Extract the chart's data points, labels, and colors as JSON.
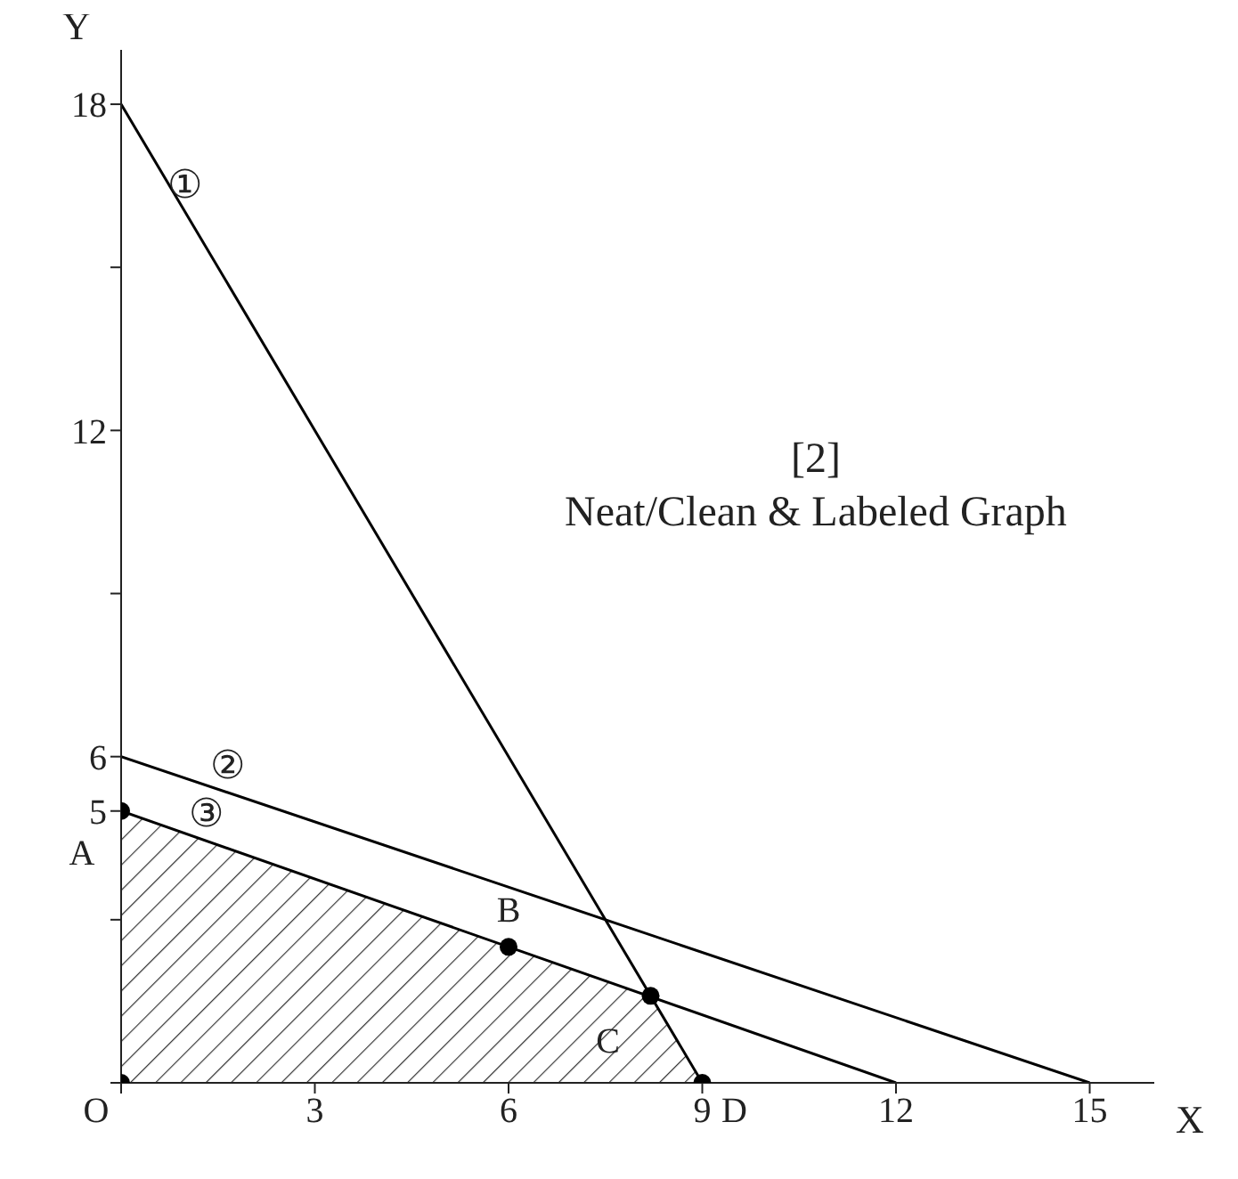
{
  "chart_data": {
    "type": "line",
    "xlabel": "X",
    "ylabel": "Y",
    "xlim": [
      0,
      16
    ],
    "ylim": [
      0,
      19
    ],
    "xticks": [
      {
        "value": 0,
        "label": null
      },
      3,
      6,
      9,
      12,
      15
    ],
    "yticks": [
      {
        "value": 0,
        "label": null
      },
      {
        "value": 3,
        "label": null
      },
      5,
      6,
      {
        "value": 9,
        "label": null
      },
      12,
      {
        "value": 15,
        "label": null
      },
      18
    ],
    "grid": false,
    "marker": "none",
    "line_style": "solid",
    "series": [
      {
        "type": "area",
        "color": "#333333",
        "x": [
          0,
          8.2,
          9
        ],
        "values": [
          5,
          1.6,
          0
        ]
      },
      {
        "x": [
          0,
          9
        ],
        "color": "#000000",
        "values": [
          18,
          0
        ]
      },
      {
        "x": [
          0,
          15
        ],
        "color": "#000000",
        "values": [
          6,
          0
        ]
      },
      {
        "x": [
          0,
          12
        ],
        "color": "#000000",
        "values": [
          5,
          0
        ]
      },
      {
        "type": "scatter",
        "color": "#000000",
        "marker": "circle",
        "x": [
          0,
          0,
          6,
          8.2,
          9
        ],
        "values": [
          0,
          5,
          2.5,
          1.6,
          0
        ],
        "value_labels": [
          "O",
          "A",
          "B",
          "C",
          "D"
        ]
      }
    ],
    "annotations": [
      "①",
      "②",
      "③",
      "[2]",
      "Neat/Clean & Labeled Graph"
    ]
  }
}
